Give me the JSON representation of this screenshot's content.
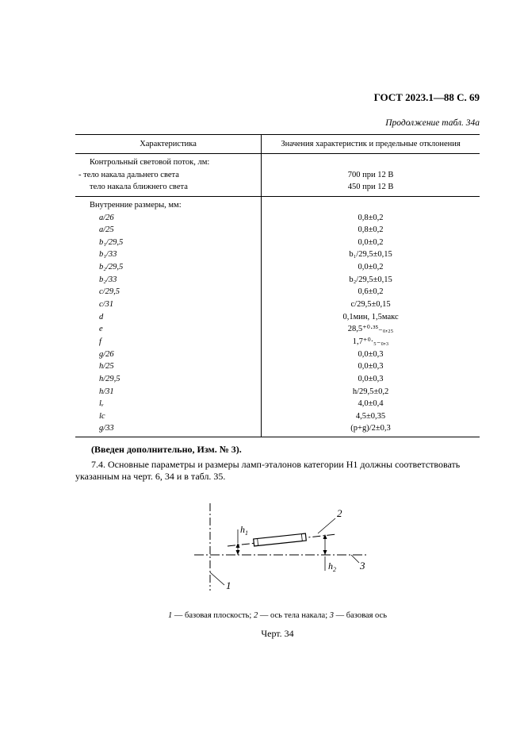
{
  "header": {
    "gost": "ГОСТ 2023.1—88 С. 69",
    "cont": "Продолжение табл. 34а"
  },
  "table": {
    "head_left": "Характеристика",
    "head_right": "Значения характеристик и предельные отклонения",
    "section1": {
      "title": "Контрольный световой поток, лм:",
      "r1l": "тело накала дальнего света",
      "r1r": "700  при 12 В",
      "r2l": "тело накала ближнего света",
      "r2r": "450  при 12 В"
    },
    "section2": {
      "title": "Внутренние размеры, мм:",
      "rows": [
        {
          "l": "a/26",
          "r": "0,8±0,2"
        },
        {
          "l": "a/25",
          "r": "0,8±0,2"
        },
        {
          "l": "b₁/29,5",
          "r": "0,0±0,2"
        },
        {
          "l": "b₁/33",
          "r": "b₁/29,5±0,15"
        },
        {
          "l": "b₂/29,5",
          "r": "0,0±0,2"
        },
        {
          "l": "b₂/33",
          "r": "b₂/29,5±0,15"
        },
        {
          "l": "c/29,5",
          "r": "0,6±0,2"
        },
        {
          "l": "c/31",
          "r": "c/29,5±0,15"
        },
        {
          "l": "d",
          "r": "0,1мин, 1,5макс"
        },
        {
          "l": "e",
          "r": "28,5⁺⁰·³⁵₋₀,₂₅"
        },
        {
          "l": "f",
          "r": "1,7⁺⁰·₅₋₀,₃"
        },
        {
          "l": "g/26",
          "r": "0,0±0,3"
        },
        {
          "l": "h/25",
          "r": "0,0±0,3"
        },
        {
          "l": "h/29,5",
          "r": "0,0±0,3"
        },
        {
          "l": "h/31",
          "r": "h/29,5±0,2"
        },
        {
          "l": "lᵥ",
          "r": "4,0±0,4"
        },
        {
          "l": "lc",
          "r": "4,5±0,35"
        },
        {
          "l": "g/33",
          "r": "(p+g)/2±0,3"
        }
      ]
    }
  },
  "text": {
    "intro": "(Введен дополнительно, Изм. № 3).",
    "p74": "7.4.  Основные параметры и размеры ламп-эталонов категории Н1 должны соответствовать указанным на черт. 6, 34 и в табл. 35.",
    "legend_1": "1",
    "legend_1t": " — базовая плоскость; ",
    "legend_2": "2",
    "legend_2t": " — ось тела накала; ",
    "legend_3": "3",
    "legend_3t": " — базовая ось",
    "figlabel": "Черт. 34"
  },
  "diagram": {
    "h1": "h₁",
    "h2": "h₂",
    "n1": "1",
    "n2": "2",
    "n3": "3"
  }
}
